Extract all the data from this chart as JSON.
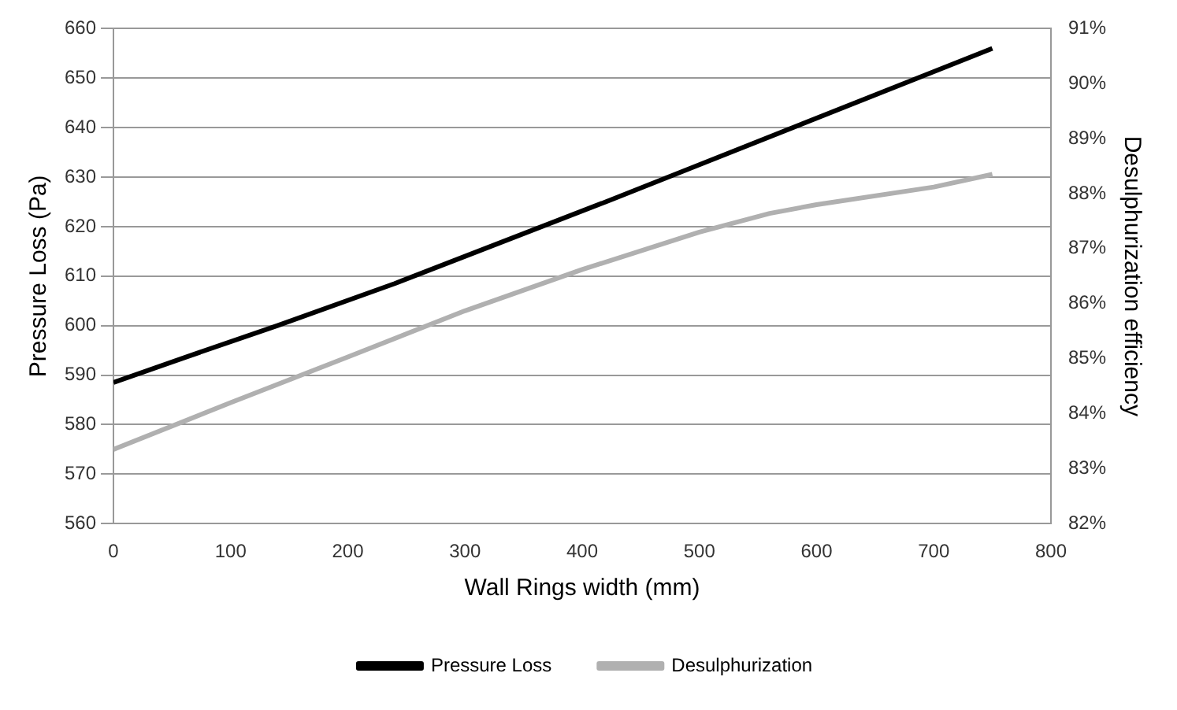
{
  "chart_data": {
    "type": "line",
    "xlabel": "Wall Rings width (mm)",
    "ylabel": "Pressure Loss (Pa)",
    "y2label": "Desulphurization efficiency",
    "xlim": [
      0,
      800
    ],
    "xticks": [
      0,
      100,
      200,
      300,
      400,
      500,
      600,
      700,
      800
    ],
    "ylim": [
      560,
      660
    ],
    "yticks": [
      560,
      570,
      580,
      590,
      600,
      610,
      620,
      630,
      640,
      650,
      660
    ],
    "y2lim": [
      82,
      91
    ],
    "y2ticks": [
      {
        "value": 82,
        "label": "82%"
      },
      {
        "value": 83,
        "label": "83%"
      },
      {
        "value": 84,
        "label": "84%"
      },
      {
        "value": 85,
        "label": "85%"
      },
      {
        "value": 86,
        "label": "86%"
      },
      {
        "value": 87,
        "label": "87%"
      },
      {
        "value": 88,
        "label": "88%"
      },
      {
        "value": 89,
        "label": "89%"
      },
      {
        "value": 90,
        "label": "90%"
      },
      {
        "value": 91,
        "label": "91%"
      }
    ],
    "grid": "y",
    "legend": "bottom",
    "marker": "none",
    "line_style": "solid",
    "series": [
      {
        "name": "Pressure Loss",
        "color": "#000000",
        "x": [
          0,
          60,
          140,
          240,
          300,
          420,
          500,
          750
        ],
        "values": [
          588.5,
          593.5,
          600,
          608.5,
          614,
          625,
          632.5,
          656
        ]
      },
      {
        "name": "Desulphurization",
        "color": "#b0b0b0",
        "axis": "y2",
        "x": [
          0,
          100,
          200,
          300,
          400,
          500,
          560,
          600,
          700,
          750
        ],
        "values": [
          83.35,
          84.2,
          85.03,
          85.87,
          86.62,
          87.3,
          87.64,
          87.8,
          88.12,
          88.35
        ]
      }
    ]
  }
}
